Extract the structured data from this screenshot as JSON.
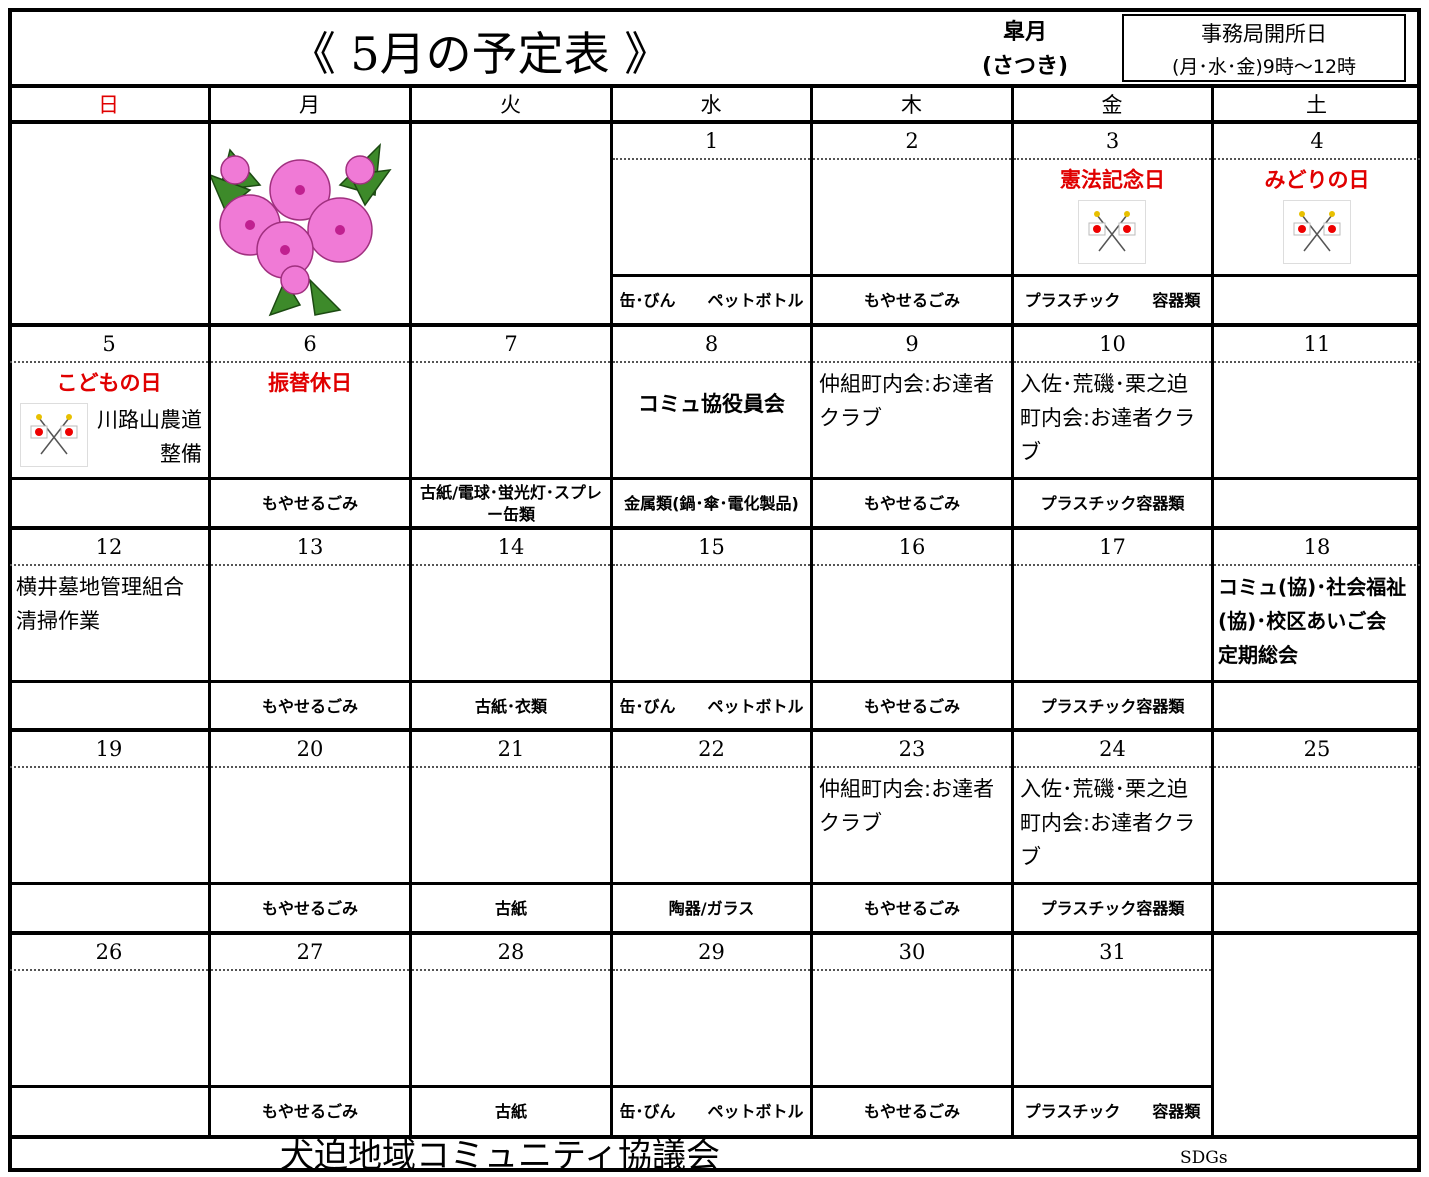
{
  "header": {
    "title": "《 5月の予定表 》",
    "month_name": "皐月",
    "reading": "(さつき)",
    "office_label": "事務局開所日",
    "office_hours": "(月･水･金)9時～12時"
  },
  "weekdays": [
    "日",
    "月",
    "火",
    "水",
    "木",
    "金",
    "土"
  ],
  "weeks": [
    {
      "days": [
        {
          "date": 1,
          "garbage": "缶･びん　　ペットボトル"
        },
        {
          "date": 2,
          "garbage": "もやせるごみ"
        },
        {
          "date": 3,
          "holiday": "憲法記念日",
          "flag": true,
          "garbage": "プラスチック　　容器類"
        },
        {
          "date": 4,
          "holiday": "みどりの日",
          "flag": true
        }
      ]
    },
    {
      "days": [
        {
          "date": 5,
          "holiday": "こどもの日",
          "flag": true,
          "events": [
            "川路山農道整備"
          ]
        },
        {
          "date": 6,
          "holiday": "振替休日",
          "garbage": "もやせるごみ"
        },
        {
          "date": 7,
          "garbage": "古紙/電球･蛍光灯･スプレー缶類"
        },
        {
          "date": 8,
          "notes": [
            "コミュ協役員会"
          ],
          "garbage": "金属類(鍋･傘･電化製品)"
        },
        {
          "date": 9,
          "events": [
            "仲組町内会:お達者クラブ"
          ],
          "garbage": "もやせるごみ"
        },
        {
          "date": 10,
          "events": [
            "入佐･荒磯･栗之迫町内会:お達者クラブ"
          ],
          "garbage": "プラスチック容器類"
        },
        {
          "date": 11
        }
      ]
    },
    {
      "days": [
        {
          "date": 12,
          "events": [
            "横井墓地管理組合清掃作業"
          ]
        },
        {
          "date": 13,
          "garbage": "もやせるごみ"
        },
        {
          "date": 14,
          "garbage": "古紙･衣類"
        },
        {
          "date": 15,
          "garbage": "缶･びん　　ペットボトル"
        },
        {
          "date": 16,
          "garbage": "もやせるごみ"
        },
        {
          "date": 17,
          "garbage": "プラスチック容器類"
        },
        {
          "date": 18,
          "notes": [
            "コミュ(協)･社会福祉(協)･校区あいご会　定期総会"
          ]
        }
      ]
    },
    {
      "days": [
        {
          "date": 19
        },
        {
          "date": 20,
          "garbage": "もやせるごみ"
        },
        {
          "date": 21,
          "garbage": "古紙"
        },
        {
          "date": 22,
          "garbage": "陶器/ガラス"
        },
        {
          "date": 23,
          "events": [
            "仲組町内会:お達者クラブ"
          ],
          "garbage": "もやせるごみ"
        },
        {
          "date": 24,
          "events": [
            "入佐･荒磯･栗之迫町内会:お達者クラブ"
          ],
          "garbage": "プラスチック容器類"
        },
        {
          "date": 25
        }
      ]
    },
    {
      "days": [
        {
          "date": 26
        },
        {
          "date": 27,
          "garbage": "もやせるごみ"
        },
        {
          "date": 28,
          "garbage": "古紙"
        },
        {
          "date": 29,
          "garbage": "缶･びん　　ペットボトル"
        },
        {
          "date": 30,
          "garbage": "もやせるごみ"
        },
        {
          "date": 31,
          "garbage": "プラスチック　　容器類"
        }
      ]
    }
  ],
  "footer": {
    "organization": "犬迫地域コミュニティ協議会",
    "sdgs": "SDGs"
  }
}
